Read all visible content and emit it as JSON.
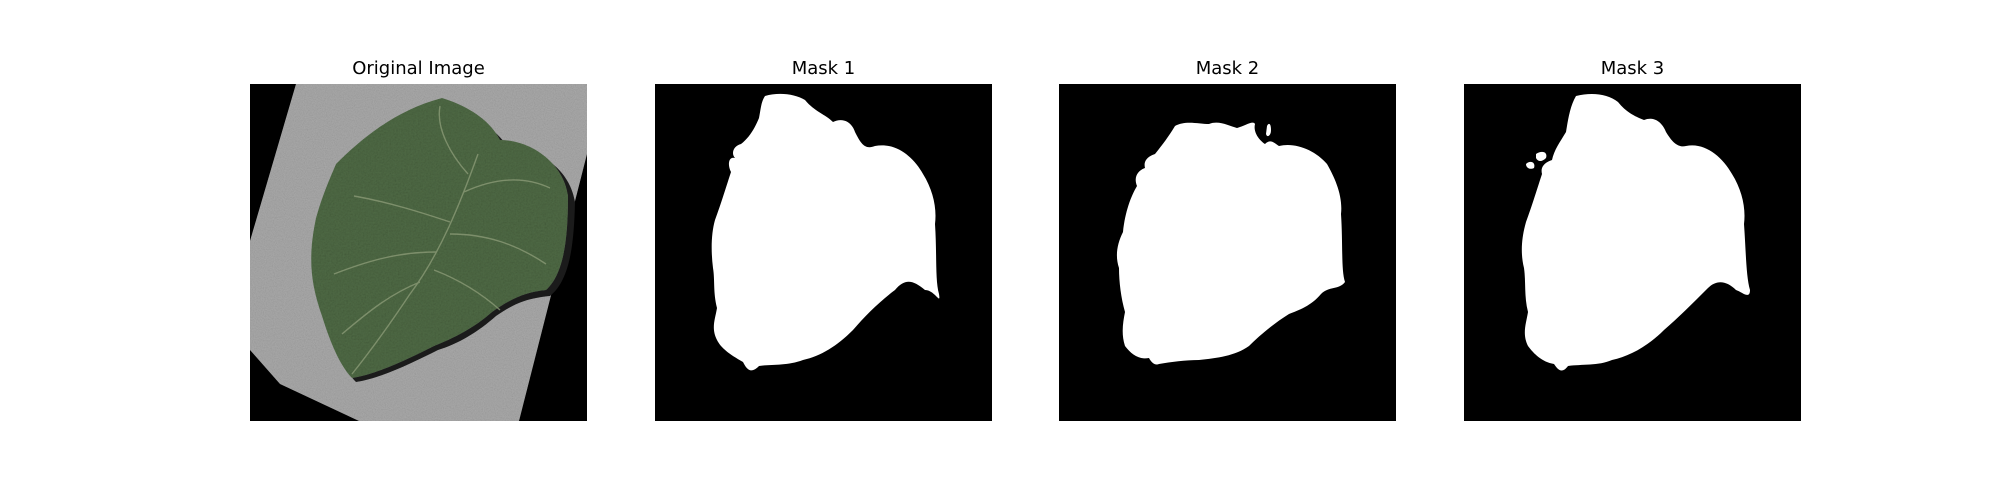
{
  "figure": {
    "panels": [
      {
        "title": "Original Image"
      },
      {
        "title": "Mask 1"
      },
      {
        "title": "Mask 2"
      },
      {
        "title": "Mask 3"
      }
    ]
  },
  "colors": {
    "background": "#ffffff",
    "mask_background": "#000000",
    "mask_foreground": "#ffffff",
    "leaf": "#4f6a45",
    "leaf_vein": "#8a9a76",
    "paper": "#a8a8a8"
  }
}
